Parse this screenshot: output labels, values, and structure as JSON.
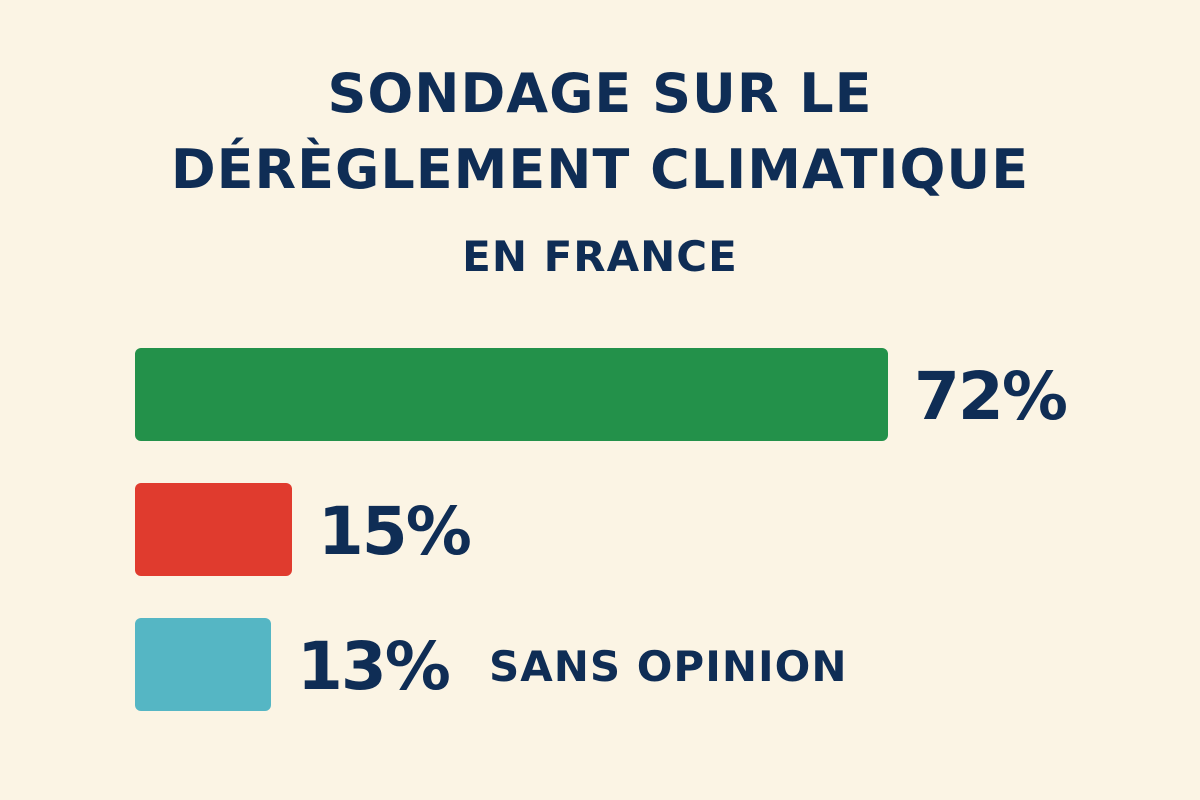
{
  "chart_data": {
    "type": "bar",
    "orientation": "horizontal",
    "title_lines": [
      "SONDAGE SUR LE",
      "DÉRÈGLEMENT CLIMATIQUE",
      "EN FRANCE"
    ],
    "values": [
      72,
      15,
      13
    ],
    "value_labels": [
      "72%",
      "15%",
      "13%"
    ],
    "category_labels": [
      "",
      "",
      "SANS OPINION"
    ],
    "colors": [
      "#23914a",
      "#e03b2e",
      "#55b6c4"
    ],
    "xlim": [
      0,
      72
    ],
    "grid": false
  }
}
